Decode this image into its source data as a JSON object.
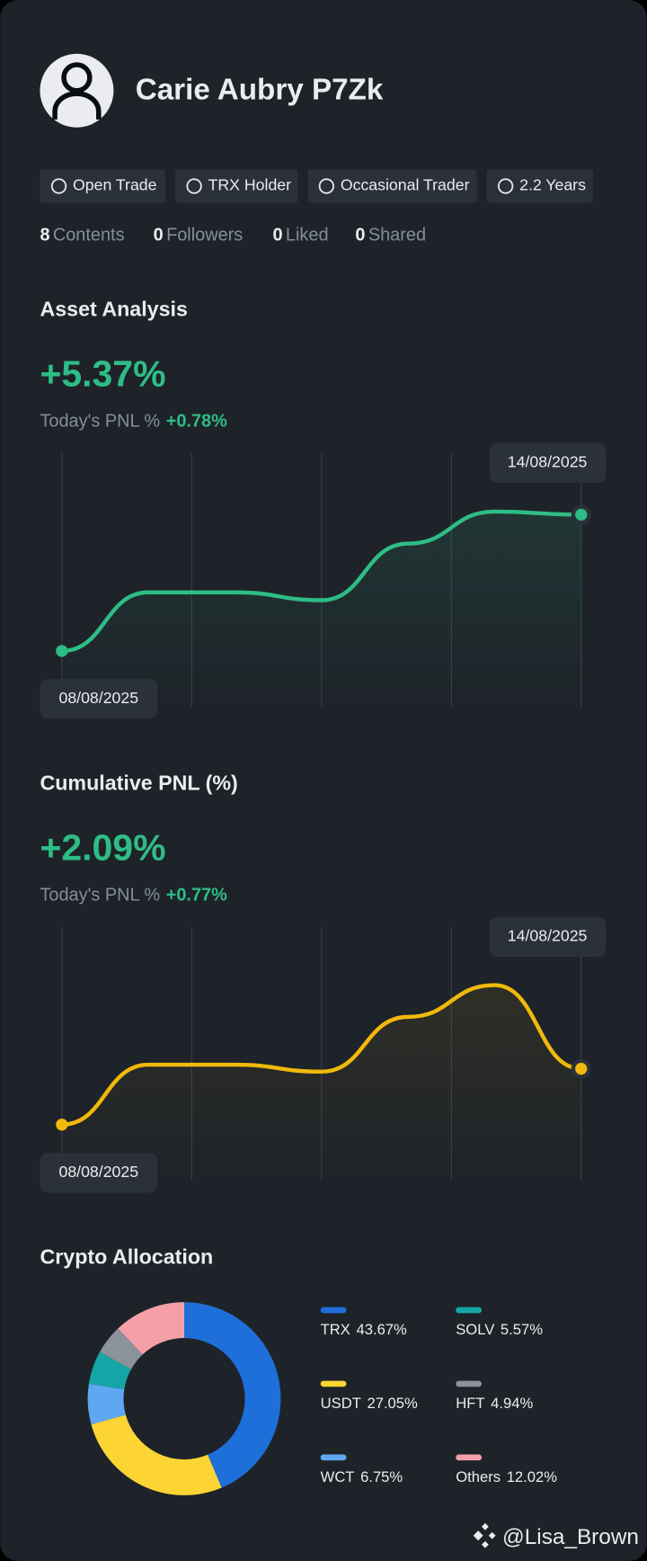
{
  "profile": {
    "name": "Carie Aubry P7Zk",
    "tags": [
      "Open Trade",
      "TRX Holder",
      "Occasional Trader",
      "2.2 Years"
    ],
    "stats": [
      {
        "count": 8,
        "label": "Contents"
      },
      {
        "count": 0,
        "label": "Followers"
      },
      {
        "count": 0,
        "label": "Liked"
      },
      {
        "count": 0,
        "label": "Shared"
      }
    ]
  },
  "chart_data": [
    {
      "type": "line",
      "title": "Asset Analysis",
      "headline": "+5.37%",
      "today_label": "Today's PNL %",
      "today_value": "+0.78%",
      "color": "#2ebd85",
      "categories": [
        "08/08/2025",
        null,
        null,
        null,
        null,
        null,
        "14/08/2025"
      ],
      "values": [
        0,
        2.31,
        2.31,
        2.0,
        4.23,
        5.49,
        5.37
      ],
      "ylim": [
        -2.2,
        7.8
      ]
    },
    {
      "type": "line",
      "title": "Cumulative PNL (%)",
      "headline": "+2.09%",
      "today_label": "Today's PNL %",
      "today_value": "+0.77%",
      "color": "#f0b90b",
      "categories": [
        "08/08/2025",
        null,
        null,
        null,
        null,
        null,
        "14/08/2025"
      ],
      "values": [
        0,
        2.24,
        2.24,
        1.98,
        4.03,
        5.22,
        2.09
      ],
      "ylim": [
        -2.1,
        7.4
      ]
    },
    {
      "type": "pie",
      "title": "Crypto Allocation",
      "categories": [
        "TRX",
        "USDT",
        "WCT",
        "SOLV",
        "HFT",
        "Others"
      ],
      "values": [
        43.67,
        27.05,
        6.75,
        5.57,
        4.94,
        12.02
      ],
      "value_labels": [
        "43.67%",
        "27.05%",
        "6.75%",
        "5.57%",
        "4.94%",
        "12.02%"
      ],
      "colors": [
        "#1e6fd9",
        "#fcd535",
        "#5ea8f2",
        "#14a6a6",
        "#8a929c",
        "#f5a0a8"
      ]
    }
  ],
  "watermark": "@Lisa_Brown"
}
